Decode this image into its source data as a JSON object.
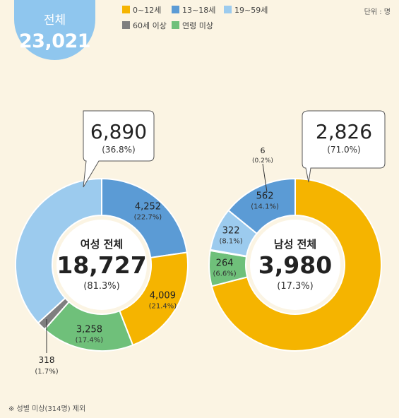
{
  "total": {
    "label": "전체",
    "value": "23,021"
  },
  "unit": "단위 : 명",
  "footnote": "※ 성별 미상(314명) 제외",
  "legend": [
    {
      "label": "0~12세",
      "color": "#f5b400"
    },
    {
      "label": "13~18세",
      "color": "#5b9bd5"
    },
    {
      "label": "19~59세",
      "color": "#9ccbee"
    },
    {
      "label": "60세 이상",
      "color": "#7f7f7f"
    },
    {
      "label": "연령 미상",
      "color": "#6fc07a"
    }
  ],
  "chart_data": [
    {
      "type": "pie",
      "center_label": {
        "title": "여성 전체",
        "value": "18,727",
        "percent": "(81.3%)"
      },
      "categories": [
        "0~12세",
        "13~18세",
        "19~59세",
        "60세 이상",
        "연령 미상"
      ],
      "values": [
        4009,
        4252,
        6890,
        318,
        3258
      ],
      "value_labels": [
        "4,009",
        "4,252",
        "6,890",
        "318",
        "3,258"
      ],
      "percent_labels": [
        "(21.4%)",
        "(22.7%)",
        "(36.8%)",
        "(1.7%)",
        "(17.4%)"
      ]
    },
    {
      "type": "pie",
      "center_label": {
        "title": "남성 전체",
        "value": "3,980",
        "percent": "(17.3%)"
      },
      "categories": [
        "0~12세",
        "13~18세",
        "19~59세",
        "60세 이상",
        "연령 미상"
      ],
      "values": [
        2826,
        562,
        322,
        6,
        264
      ],
      "value_labels": [
        "2,826",
        "562",
        "322",
        "6",
        "264"
      ],
      "percent_labels": [
        "(71.0%)",
        "(14.1%)",
        "(8.1%)",
        "(0.2%)",
        "(6.6%)"
      ]
    }
  ]
}
